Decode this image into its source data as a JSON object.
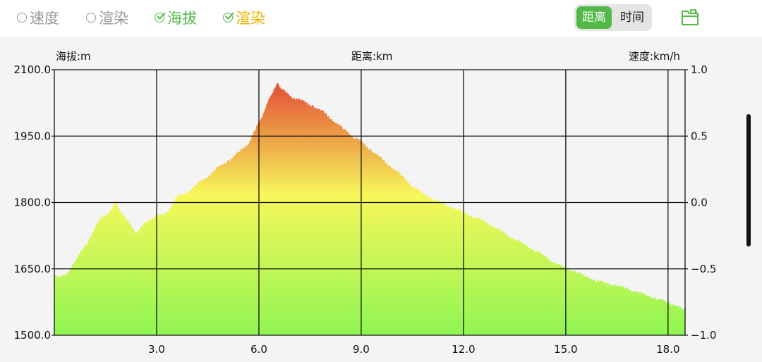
{
  "toolbar": {
    "options": [
      {
        "label": "速度",
        "checked": false,
        "color": "#9a9a9a"
      },
      {
        "label": "渲染",
        "checked": false,
        "color": "#9a9a9a"
      },
      {
        "label": "海拔",
        "checked": true,
        "color": "#52b848"
      },
      {
        "label": "渲染",
        "checked": true,
        "color": "#f0b400"
      }
    ],
    "segment": {
      "active": "距离",
      "inactive": "时间",
      "active_color": "#52b848"
    },
    "folder_icon": "folder-export-icon"
  },
  "chart_data": {
    "type": "area",
    "left_axis_label": "海拔:m",
    "top_axis_label": "距离:km",
    "right_axis_label": "速度:km/h",
    "ylim": [
      1500,
      2100
    ],
    "y_ticks": [
      "2100.0",
      "1950.0",
      "1800.0",
      "1650.0",
      "1500.0"
    ],
    "y2lim": [
      -1.0,
      1.0
    ],
    "y2_ticks": [
      "1.0",
      "0.5",
      "0.0",
      "−0.5",
      "−1.0"
    ],
    "xlim": [
      0,
      18.5
    ],
    "x_ticks": [
      "3.0",
      "6.0",
      "9.0",
      "12.0",
      "15.0",
      "18.0"
    ],
    "grid": true,
    "gradient_colors": [
      "#e24a36",
      "#f7f75a",
      "#8ff552"
    ],
    "series": [
      {
        "x": [
          0,
          0.15,
          0.35,
          0.6,
          1.0,
          1.3,
          1.6,
          1.8,
          1.9,
          2.1,
          2.4,
          2.6,
          2.8,
          3.0,
          3.3,
          3.6,
          3.9,
          4.2,
          4.5,
          4.8,
          5.1,
          5.4,
          5.7,
          5.9,
          6.1,
          6.3,
          6.45,
          6.55,
          6.65,
          6.8,
          7.0,
          7.3,
          7.6,
          7.9,
          8.2,
          8.5,
          8.8,
          9.0,
          9.3,
          9.6,
          9.9,
          10.2,
          10.5,
          10.8,
          11.1,
          11.4,
          11.7,
          12.0,
          12.3,
          12.6,
          12.9,
          13.2,
          13.5,
          13.8,
          14.1,
          14.4,
          14.7,
          15.0,
          15.3,
          15.6,
          15.9,
          16.2,
          16.5,
          16.8,
          17.1,
          17.4,
          17.7,
          18.0,
          18.2,
          18.5
        ],
        "y": [
          1640,
          1630,
          1638,
          1665,
          1715,
          1758,
          1778,
          1800,
          1786,
          1762,
          1733,
          1748,
          1763,
          1768,
          1777,
          1813,
          1823,
          1842,
          1860,
          1878,
          1895,
          1912,
          1935,
          1965,
          1998,
          2032,
          2058,
          2068,
          2060,
          2048,
          2038,
          2028,
          2018,
          2003,
          1985,
          1965,
          1948,
          1938,
          1918,
          1898,
          1880,
          1860,
          1838,
          1820,
          1808,
          1797,
          1788,
          1778,
          1768,
          1758,
          1745,
          1730,
          1717,
          1705,
          1692,
          1678,
          1662,
          1652,
          1643,
          1633,
          1624,
          1618,
          1612,
          1605,
          1597,
          1590,
          1582,
          1575,
          1567,
          1558
        ]
      }
    ]
  }
}
